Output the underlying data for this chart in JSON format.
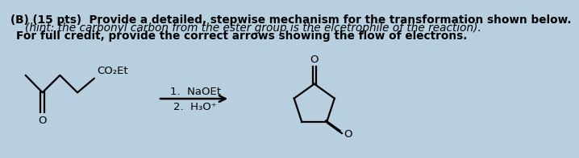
{
  "bg_color": "#b8cfe0",
  "title_line1": "(B) (15 pts)  Provide a detailed, stepwise mechanism for the transformation shown below.",
  "title_line2": "(hint: the carbonyl carbon from the ester group is the elcetrophile of the reaction).",
  "title_line3": "For full credit, provide the correct arrows showing the flow of electrons.",
  "reagent_line1": "1.  NaOEt",
  "reagent_line2": "2.  H₃O⁺",
  "co2et_label": "CO₂Et",
  "o_label": "O",
  "title_fontsize": 9.8,
  "chem_fontsize": 9.5,
  "lw": 1.6
}
